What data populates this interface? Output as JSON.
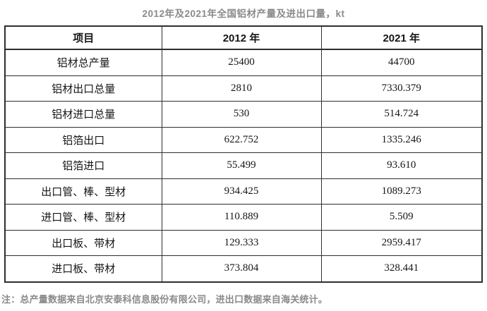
{
  "title": "2012年及2021年全国铝材产量及进出口量，kt",
  "note": "注：总产量数据来自北京安泰科信息股份有限公司，进出口数据来自海关统计。",
  "colors": {
    "title_text": "#8a8a8a",
    "note_text": "#8a8a8a",
    "table_border": "#2e2e2e",
    "cell_text": "#161616",
    "background": "#ffffff"
  },
  "chart_data": {
    "type": "table",
    "title": "2012年及2021年全国铝材产量及进出口量，kt",
    "unit": "kt",
    "columns": [
      "项目",
      "2012 年",
      "2021 年"
    ],
    "rows": [
      [
        "铝材总产量",
        "25400",
        "44700"
      ],
      [
        "铝材出口总量",
        "2810",
        "7330.379"
      ],
      [
        "铝材进口总量",
        "530",
        "514.724"
      ],
      [
        "铝箔出口",
        "622.752",
        "1335.246"
      ],
      [
        "铝箔进口",
        "55.499",
        "93.610"
      ],
      [
        "出口管、棒、型材",
        "934.425",
        "1089.273"
      ],
      [
        "进口管、棒、型材",
        "110.889",
        "5.509"
      ],
      [
        "出口板、带材",
        "129.333",
        "2959.417"
      ],
      [
        "进口板、带材",
        "373.804",
        "328.441"
      ]
    ],
    "series": [
      {
        "name": "2012 年",
        "values": [
          25400,
          2810,
          530,
          622.752,
          55.499,
          934.425,
          110.889,
          129.333,
          373.804
        ]
      },
      {
        "name": "2021 年",
        "values": [
          44700,
          7330.379,
          514.724,
          1335.246,
          93.61,
          1089.273,
          5.509,
          2959.417,
          328.441
        ]
      }
    ],
    "categories": [
      "铝材总产量",
      "铝材出口总量",
      "铝材进口总量",
      "铝箔出口",
      "铝箔进口",
      "出口管、棒、型材",
      "进口管、棒、型材",
      "出口板、带材",
      "进口板、带材"
    ],
    "note": "注：总产量数据来自北京安泰科信息股份有限公司，进出口数据来自海关统计。"
  }
}
